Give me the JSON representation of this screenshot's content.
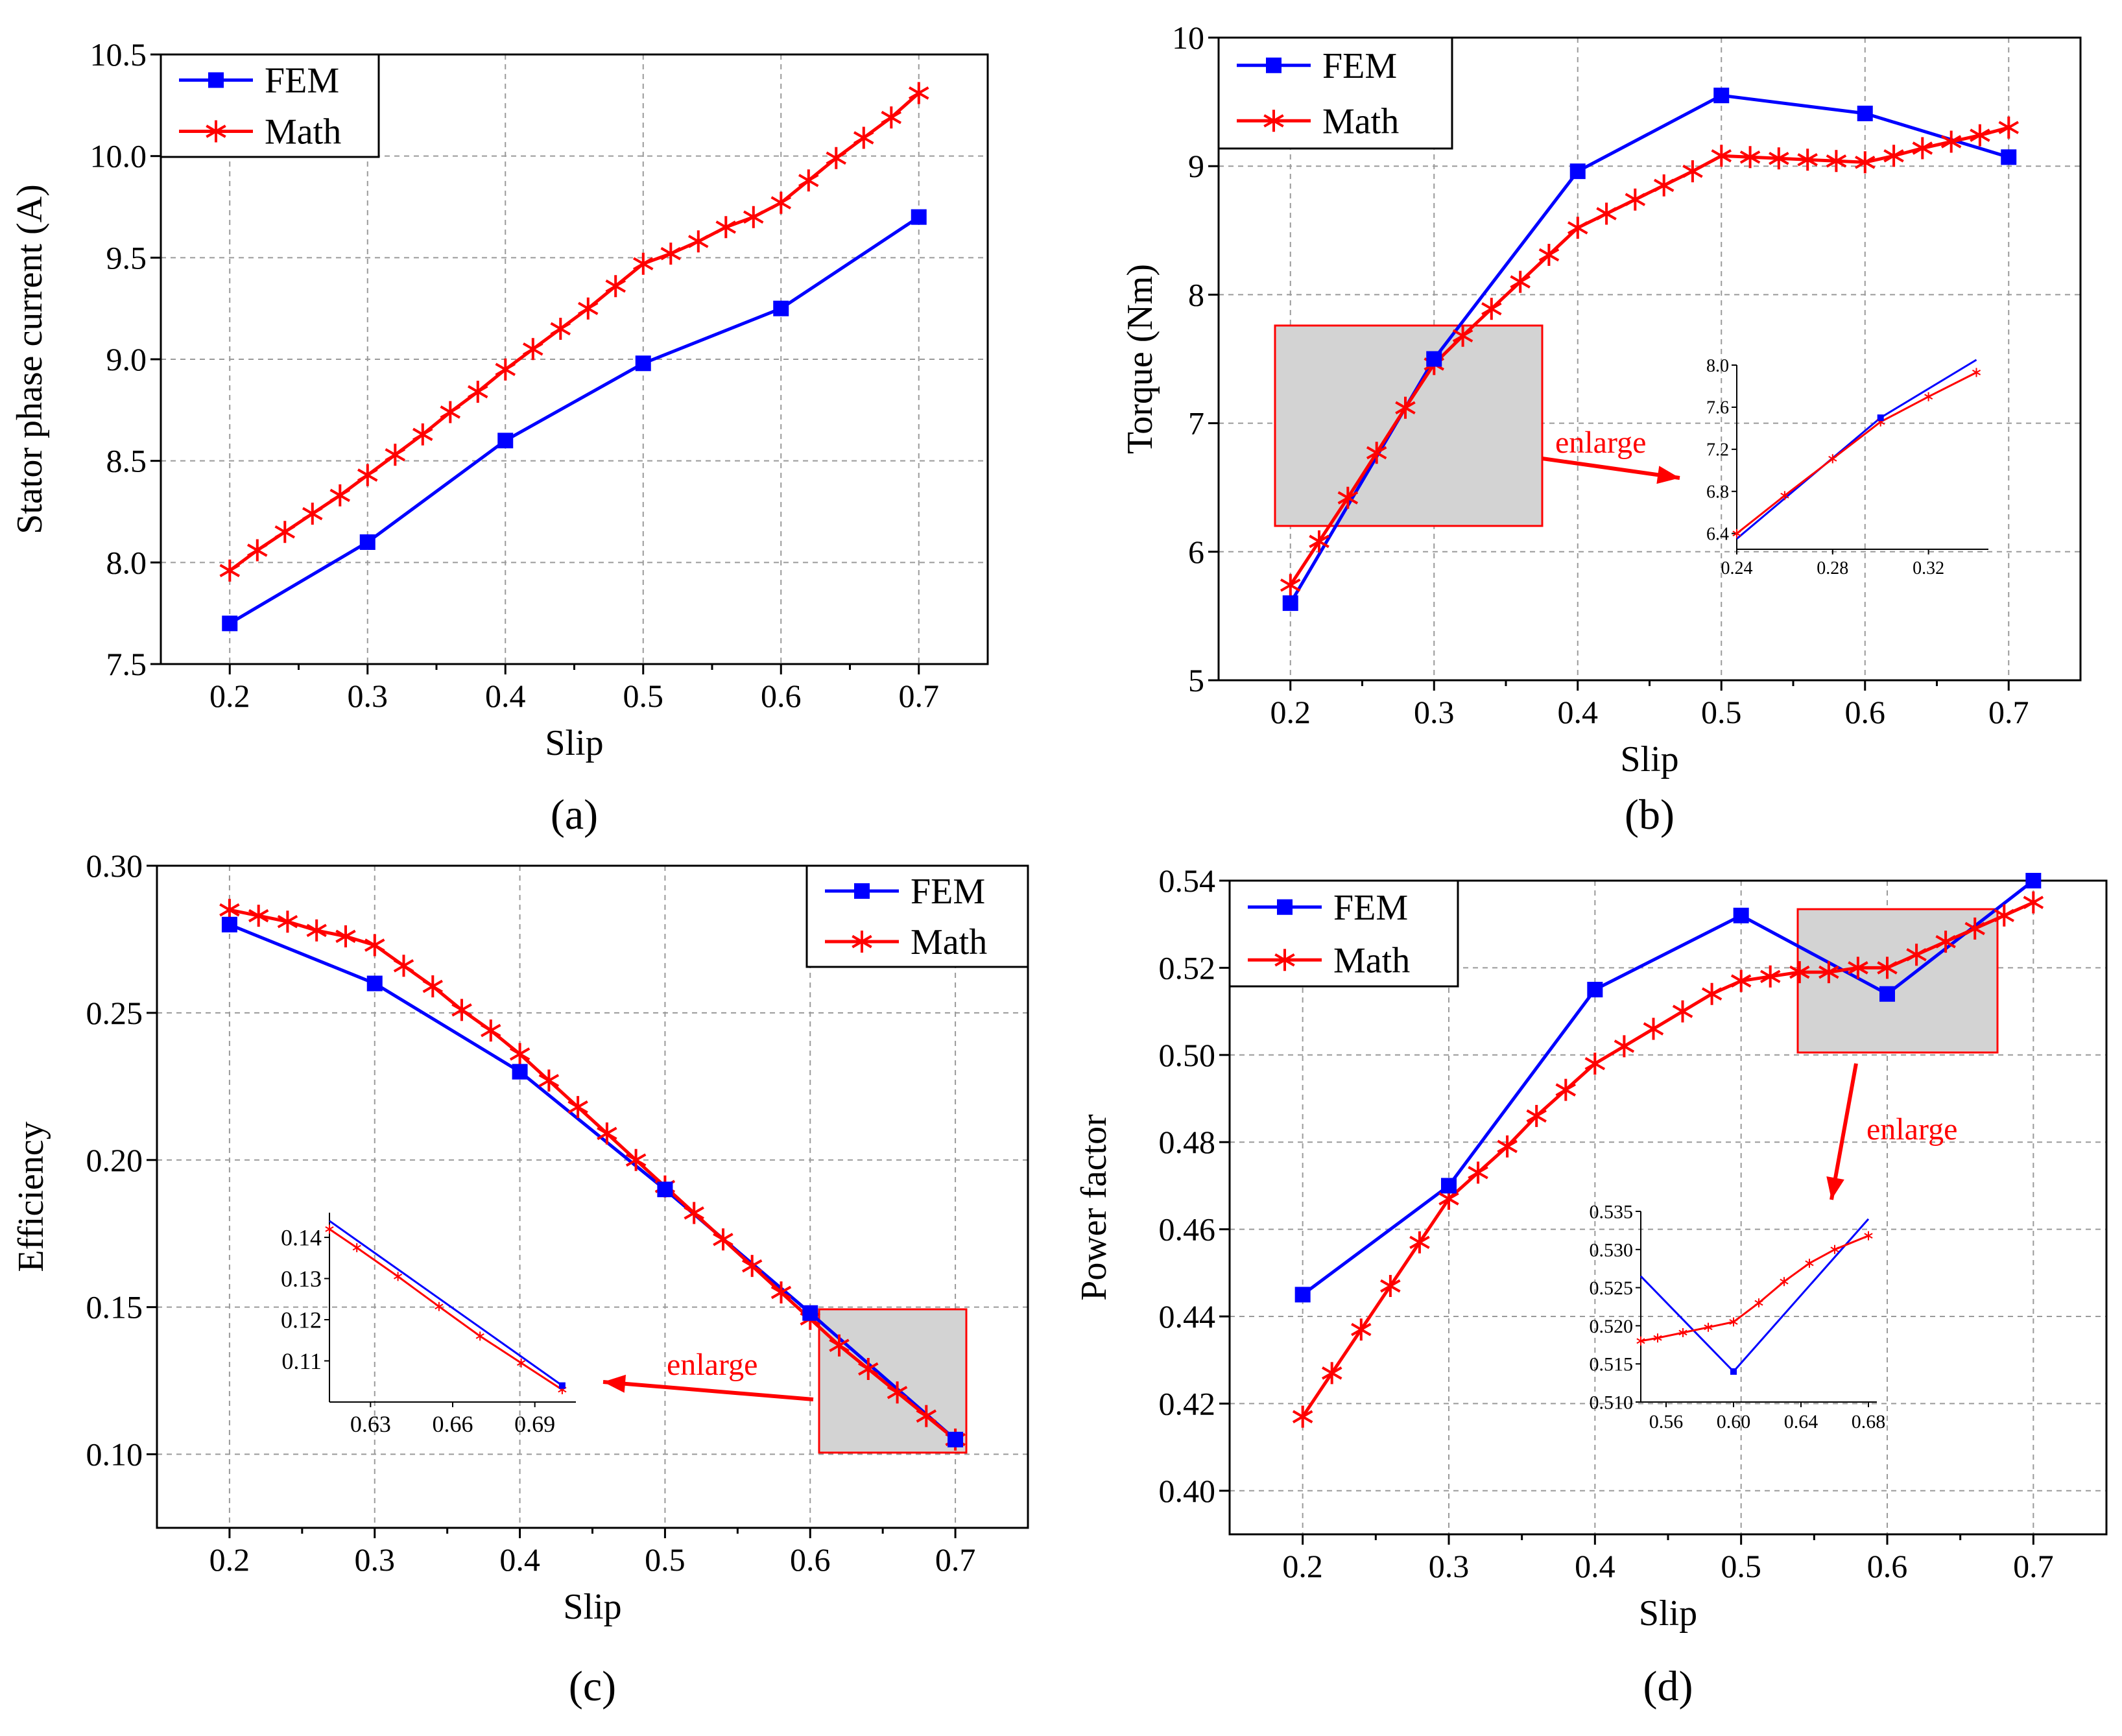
{
  "colors": {
    "fem": "#0000ff",
    "math": "#ff0000",
    "box": "#d3d3d3"
  },
  "chart_data": [
    {
      "type": "line",
      "panel": "(a)",
      "xlabel": "Slip",
      "ylabel": "Stator phase current (A)",
      "xlim": [
        0.15,
        0.75
      ],
      "ylim": [
        7.5,
        10.5
      ],
      "xticks": [
        "0.2",
        "0.3",
        "0.4",
        "0.5",
        "0.6",
        "0.7"
      ],
      "yticks": [
        "7.5",
        "8.0",
        "8.5",
        "9.0",
        "9.5",
        "10.0",
        "10.5"
      ],
      "legend": [
        "FEM",
        "Math"
      ],
      "legend_position": "top-left",
      "series": [
        {
          "name": "FEM",
          "marker": "square",
          "x": [
            0.2,
            0.3,
            0.4,
            0.5,
            0.6,
            0.7
          ],
          "y": [
            7.7,
            8.1,
            8.6,
            8.98,
            9.25,
            9.7
          ]
        },
        {
          "name": "Math",
          "marker": "asterisk",
          "x": [
            0.2,
            0.22,
            0.24,
            0.26,
            0.28,
            0.3,
            0.32,
            0.34,
            0.36,
            0.38,
            0.4,
            0.42,
            0.44,
            0.46,
            0.48,
            0.5,
            0.52,
            0.54,
            0.56,
            0.58,
            0.6,
            0.62,
            0.64,
            0.66,
            0.68,
            0.7
          ],
          "y": [
            7.96,
            8.06,
            8.15,
            8.24,
            8.33,
            8.43,
            8.53,
            8.63,
            8.74,
            8.84,
            8.95,
            9.05,
            9.15,
            9.25,
            9.36,
            9.47,
            9.52,
            9.58,
            9.65,
            9.7,
            9.77,
            9.88,
            9.99,
            10.09,
            10.19,
            10.31
          ]
        }
      ]
    },
    {
      "type": "line",
      "panel": "(b)",
      "xlabel": "Slip",
      "ylabel": "Torque (Nm)",
      "xlim": [
        0.15,
        0.75
      ],
      "ylim": [
        5,
        10
      ],
      "xticks": [
        "0.2",
        "0.3",
        "0.4",
        "0.5",
        "0.6",
        "0.7"
      ],
      "yticks": [
        "5",
        "6",
        "7",
        "8",
        "9",
        "10"
      ],
      "legend": [
        "FEM",
        "Math"
      ],
      "legend_position": "top-left",
      "annotation": "enlarge",
      "series": [
        {
          "name": "FEM",
          "marker": "square",
          "x": [
            0.2,
            0.3,
            0.4,
            0.5,
            0.6,
            0.7
          ],
          "y": [
            5.6,
            7.5,
            8.96,
            9.55,
            9.41,
            9.07
          ]
        },
        {
          "name": "Math",
          "marker": "asterisk",
          "x": [
            0.2,
            0.22,
            0.24,
            0.26,
            0.28,
            0.3,
            0.32,
            0.34,
            0.36,
            0.38,
            0.4,
            0.42,
            0.44,
            0.46,
            0.48,
            0.5,
            0.52,
            0.54,
            0.56,
            0.58,
            0.6,
            0.62,
            0.64,
            0.66,
            0.68,
            0.7
          ],
          "y": [
            5.74,
            6.08,
            6.42,
            6.77,
            7.12,
            7.46,
            7.68,
            7.89,
            8.1,
            8.31,
            8.52,
            8.63,
            8.74,
            8.85,
            8.96,
            9.08,
            9.07,
            9.06,
            9.05,
            9.04,
            9.03,
            9.08,
            9.14,
            9.19,
            9.24,
            9.3
          ]
        }
      ],
      "inset": {
        "xlim": [
          0.24,
          0.345
        ],
        "ylim": [
          6.25,
          8.0
        ],
        "xticks": [
          "0.24",
          "0.28",
          "0.32"
        ],
        "yticks": [
          "6.4",
          "6.8",
          "7.2",
          "7.6",
          "8.0"
        ],
        "fem": {
          "x": [
            0.24,
            0.3,
            0.34
          ],
          "y": [
            6.35,
            7.5,
            8.05
          ]
        },
        "math": {
          "x": [
            0.24,
            0.26,
            0.28,
            0.3,
            0.32,
            0.34
          ],
          "y": [
            6.4,
            6.76,
            7.11,
            7.46,
            7.7,
            7.93
          ]
        }
      }
    },
    {
      "type": "line",
      "panel": "(c)",
      "xlabel": "Slip",
      "ylabel": "Efficiency",
      "xlim": [
        0.15,
        0.75
      ],
      "ylim": [
        0.075,
        0.3
      ],
      "xticks": [
        "0.2",
        "0.3",
        "0.4",
        "0.5",
        "0.6",
        "0.7"
      ],
      "yticks": [
        "0.10",
        "0.15",
        "0.20",
        "0.25",
        "0.30"
      ],
      "legend": [
        "FEM",
        "Math"
      ],
      "legend_position": "top-right",
      "annotation": "enlarge",
      "series": [
        {
          "name": "FEM",
          "marker": "square",
          "x": [
            0.2,
            0.3,
            0.4,
            0.5,
            0.6,
            0.7
          ],
          "y": [
            0.28,
            0.26,
            0.23,
            0.19,
            0.148,
            0.105
          ]
        },
        {
          "name": "Math",
          "marker": "asterisk",
          "x": [
            0.2,
            0.22,
            0.24,
            0.26,
            0.28,
            0.3,
            0.32,
            0.34,
            0.36,
            0.38,
            0.4,
            0.42,
            0.44,
            0.46,
            0.48,
            0.5,
            0.52,
            0.54,
            0.56,
            0.58,
            0.6,
            0.62,
            0.64,
            0.66,
            0.68,
            0.7
          ],
          "y": [
            0.285,
            0.283,
            0.281,
            0.278,
            0.276,
            0.273,
            0.266,
            0.259,
            0.251,
            0.244,
            0.236,
            0.227,
            0.218,
            0.209,
            0.2,
            0.191,
            0.182,
            0.173,
            0.164,
            0.155,
            0.146,
            0.137,
            0.129,
            0.121,
            0.113,
            0.105
          ]
        }
      ],
      "inset": {
        "xlim": [
          0.615,
          0.705
        ],
        "ylim": [
          0.1,
          0.146
        ],
        "xticks": [
          "0.63",
          "0.66",
          "0.69"
        ],
        "yticks": [
          "0.11",
          "0.12",
          "0.13",
          "0.14"
        ],
        "fem": {
          "x": [
            0.615,
            0.7
          ],
          "y": [
            0.144,
            0.104
          ]
        },
        "math": {
          "x": [
            0.615,
            0.625,
            0.64,
            0.655,
            0.67,
            0.685,
            0.7
          ],
          "y": [
            0.142,
            0.1375,
            0.1305,
            0.1232,
            0.116,
            0.1095,
            0.103
          ]
        }
      }
    },
    {
      "type": "line",
      "panel": "(d)",
      "xlabel": "Slip",
      "ylabel": "Power factor",
      "xlim": [
        0.15,
        0.75
      ],
      "ylim": [
        0.39,
        0.54
      ],
      "xticks": [
        "0.2",
        "0.3",
        "0.4",
        "0.5",
        "0.6",
        "0.7"
      ],
      "yticks": [
        "0.40",
        "0.42",
        "0.44",
        "0.46",
        "0.48",
        "0.50",
        "0.52",
        "0.54"
      ],
      "legend": [
        "FEM",
        "Math"
      ],
      "legend_position": "top-left",
      "annotation": "enlarge",
      "series": [
        {
          "name": "FEM",
          "marker": "square",
          "x": [
            0.2,
            0.3,
            0.4,
            0.5,
            0.6,
            0.7
          ],
          "y": [
            0.445,
            0.47,
            0.515,
            0.532,
            0.514,
            0.54
          ]
        },
        {
          "name": "Math",
          "marker": "asterisk",
          "x": [
            0.2,
            0.22,
            0.24,
            0.26,
            0.28,
            0.3,
            0.32,
            0.34,
            0.36,
            0.38,
            0.4,
            0.42,
            0.44,
            0.46,
            0.48,
            0.5,
            0.52,
            0.54,
            0.56,
            0.58,
            0.6,
            0.62,
            0.64,
            0.66,
            0.68,
            0.7
          ],
          "y": [
            0.417,
            0.427,
            0.437,
            0.447,
            0.457,
            0.467,
            0.473,
            0.479,
            0.486,
            0.492,
            0.498,
            0.502,
            0.506,
            0.51,
            0.514,
            0.517,
            0.518,
            0.519,
            0.519,
            0.52,
            0.52,
            0.523,
            0.526,
            0.529,
            0.532,
            0.535
          ]
        }
      ],
      "inset": {
        "xlim": [
          0.545,
          0.685
        ],
        "ylim": [
          0.51,
          0.535
        ],
        "xticks": [
          "0.56",
          "0.60",
          "0.64",
          "0.68"
        ],
        "yticks": [
          "0.510",
          "0.515",
          "0.520",
          "0.525",
          "0.530",
          "0.535"
        ],
        "fem": {
          "x": [
            0.545,
            0.6,
            0.68
          ],
          "y": [
            0.5265,
            0.514,
            0.534
          ]
        },
        "math": {
          "x": [
            0.545,
            0.555,
            0.57,
            0.585,
            0.6,
            0.615,
            0.63,
            0.645,
            0.66,
            0.68
          ],
          "y": [
            0.518,
            0.5184,
            0.5191,
            0.5198,
            0.5205,
            0.523,
            0.5258,
            0.5282,
            0.53,
            0.5318
          ]
        }
      }
    }
  ]
}
